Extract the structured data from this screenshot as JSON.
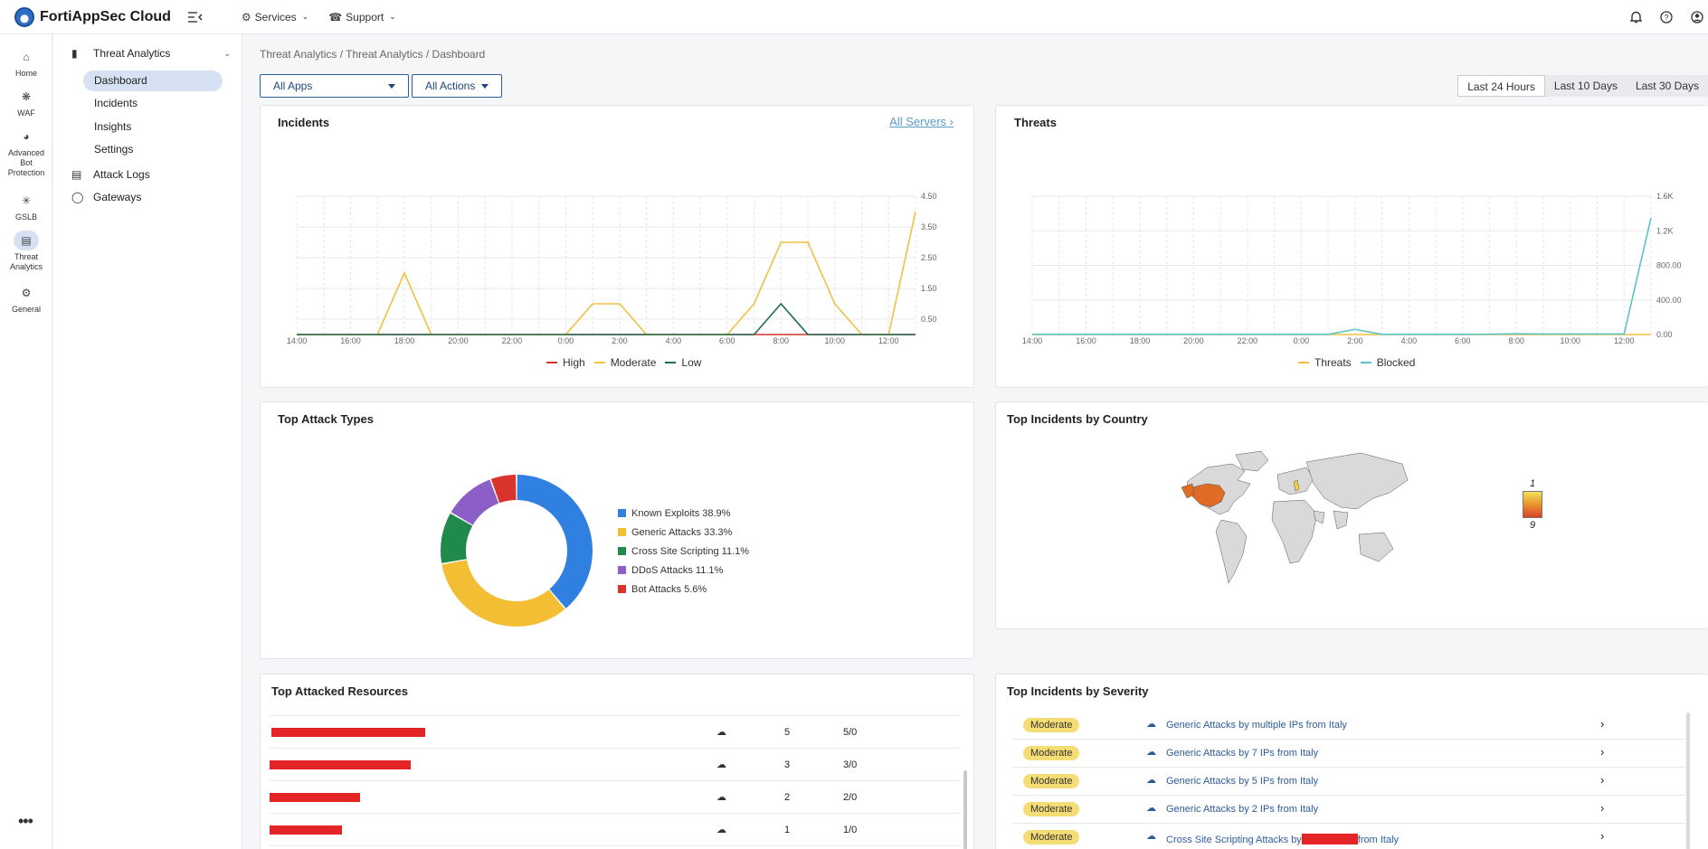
{
  "app": {
    "title": "FortiAppSec Cloud"
  },
  "topnav": {
    "services": "Services",
    "support": "Support"
  },
  "rail": {
    "home": "Home",
    "waf": "WAF",
    "advanced_bot": "Advanced Bot Protection",
    "gslb": "GSLB",
    "threat_analytics": "Threat Analytics",
    "general": "General"
  },
  "subnav": {
    "group": "Threat Analytics",
    "items": [
      "Dashboard",
      "Incidents",
      "Insights",
      "Settings"
    ],
    "attack_logs": "Attack Logs",
    "gateways": "Gateways"
  },
  "breadcrumb": "Threat Analytics / Threat Analytics / Dashboard",
  "filters": {
    "apps": "All Apps",
    "actions": "All Actions"
  },
  "ranges": [
    "Last 24 Hours",
    "Last 10 Days",
    "Last 30 Days"
  ],
  "incidents_card": {
    "title": "Incidents",
    "link": "All Servers",
    "legend": [
      "High",
      "Moderate",
      "Low"
    ]
  },
  "threats_card": {
    "title": "Threats",
    "legend": [
      "Threats",
      "Blocked"
    ]
  },
  "attack_types_card": {
    "title": "Top Attack Types"
  },
  "country_card": {
    "title": "Top Incidents by Country",
    "scale_max": "1",
    "scale_min": "9"
  },
  "resources_card": {
    "title": "Top Attacked Resources",
    "rows": [
      {
        "count": "5",
        "ratio": "5/0"
      },
      {
        "count": "3",
        "ratio": "3/0"
      },
      {
        "count": "2",
        "ratio": "2/0"
      },
      {
        "count": "1",
        "ratio": "1/0"
      }
    ]
  },
  "severity_card": {
    "title": "Top Incidents by Severity",
    "rows": [
      {
        "severity": "Moderate",
        "text": "Generic Attacks by multiple IPs from Italy"
      },
      {
        "severity": "Moderate",
        "text": "Generic Attacks by 7 IPs from Italy"
      },
      {
        "severity": "Moderate",
        "text": "Generic Attacks by 5 IPs from Italy"
      },
      {
        "severity": "Moderate",
        "text": "Generic Attacks by 2 IPs from Italy"
      },
      {
        "severity": "Moderate",
        "text_before": "Cross Site Scripting Attacks by",
        "text_after": "from Italy"
      }
    ]
  },
  "colors": {
    "high": "#d9342b",
    "moderate": "#f0c040",
    "low": "#1f6b52",
    "threats": "#f0c040",
    "blocked": "#5bc3c7",
    "known_exploits": "#2f80e0",
    "generic_attacks": "#f3bd34",
    "xss": "#1f8a4c",
    "ddos": "#8c5ec8",
    "bot": "#d9342b"
  },
  "chart_data": [
    {
      "type": "line",
      "title": "Incidents",
      "x": [
        "14:00",
        "15:00",
        "16:00",
        "17:00",
        "18:00",
        "19:00",
        "20:00",
        "21:00",
        "22:00",
        "23:00",
        "0:00",
        "1:00",
        "2:00",
        "3:00",
        "4:00",
        "5:00",
        "6:00",
        "7:00",
        "8:00",
        "9:00",
        "10:00",
        "11:00",
        "12:00",
        "13:00"
      ],
      "x_ticks": [
        "14:00",
        "16:00",
        "18:00",
        "20:00",
        "22:00",
        "0:00",
        "2:00",
        "4:00",
        "6:00",
        "8:00",
        "10:00",
        "12:00"
      ],
      "y_ticks": [
        "0.50",
        "1.50",
        "2.50",
        "3.50",
        "4.50"
      ],
      "ylim": [
        0,
        4.5
      ],
      "series": [
        {
          "name": "High",
          "values": [
            0,
            0,
            0,
            0,
            0,
            0,
            0,
            0,
            0,
            0,
            0,
            0,
            0,
            0,
            0,
            0,
            0,
            0,
            0,
            0,
            0,
            0,
            0,
            0
          ]
        },
        {
          "name": "Moderate",
          "values": [
            0,
            0,
            0,
            0,
            2,
            0,
            0,
            0,
            0,
            0,
            0,
            1,
            1,
            0,
            0,
            0,
            0,
            1,
            3,
            3,
            1,
            0,
            0,
            4
          ]
        },
        {
          "name": "Low",
          "values": [
            0,
            0,
            0,
            0,
            0,
            0,
            0,
            0,
            0,
            0,
            0,
            0,
            0,
            0,
            0,
            0,
            0,
            0,
            1,
            0,
            0,
            0,
            0,
            0
          ]
        }
      ]
    },
    {
      "type": "line",
      "title": "Threats",
      "x": [
        "14:00",
        "15:00",
        "16:00",
        "17:00",
        "18:00",
        "19:00",
        "20:00",
        "21:00",
        "22:00",
        "23:00",
        "0:00",
        "1:00",
        "2:00",
        "3:00",
        "4:00",
        "5:00",
        "6:00",
        "7:00",
        "8:00",
        "9:00",
        "10:00",
        "11:00",
        "12:00",
        "13:00"
      ],
      "x_ticks": [
        "14:00",
        "16:00",
        "18:00",
        "20:00",
        "22:00",
        "0:00",
        "2:00",
        "4:00",
        "6:00",
        "8:00",
        "10:00",
        "12:00"
      ],
      "y_ticks": [
        "0.00",
        "400.00",
        "800.00",
        "1.2K",
        "1.6K"
      ],
      "ylim": [
        0,
        1600
      ],
      "series": [
        {
          "name": "Threats",
          "values": [
            0,
            0,
            0,
            0,
            0,
            0,
            0,
            0,
            0,
            0,
            0,
            0,
            0,
            0,
            0,
            0,
            0,
            0,
            0,
            0,
            0,
            0,
            0,
            0
          ]
        },
        {
          "name": "Blocked",
          "values": [
            2,
            2,
            2,
            2,
            2,
            2,
            2,
            2,
            2,
            2,
            2,
            2,
            60,
            2,
            2,
            2,
            2,
            4,
            8,
            6,
            6,
            6,
            6,
            1350
          ]
        }
      ]
    },
    {
      "type": "pie",
      "title": "Top Attack Types",
      "labels": [
        "Known Exploits 38.9%",
        "Generic Attacks 33.3%",
        "Cross Site Scripting 11.1%",
        "DDoS Attacks 11.1%",
        "Bot Attacks 5.6%"
      ],
      "values": [
        38.9,
        33.3,
        11.1,
        11.1,
        5.6
      ]
    }
  ]
}
